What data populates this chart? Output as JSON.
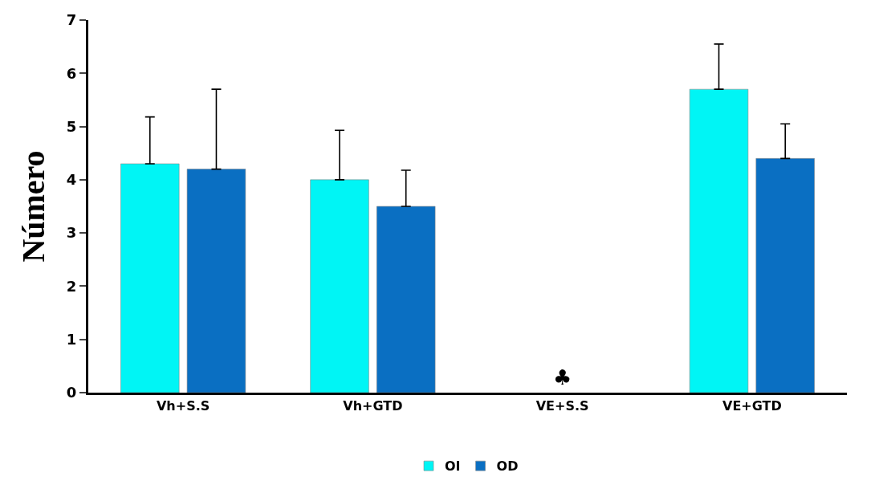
{
  "chart_data": {
    "type": "bar",
    "ylabel": "Número",
    "categories": [
      "Vh+S.S",
      "Vh+GTD",
      "VE+S.S",
      "VE+GTD"
    ],
    "series": [
      {
        "name": "OI",
        "color": "#00f5f5",
        "values": [
          4.3,
          4.0,
          null,
          5.7
        ],
        "errors": [
          [
            4.3,
            5.18
          ],
          [
            4.0,
            4.93
          ],
          null,
          [
            5.7,
            6.55
          ]
        ]
      },
      {
        "name": "OD",
        "color": "#0a6fc2",
        "values": [
          4.2,
          3.5,
          null,
          4.4
        ],
        "errors": [
          [
            4.2,
            5.7
          ],
          [
            3.5,
            4.18
          ],
          null,
          [
            4.4,
            5.05
          ]
        ]
      }
    ],
    "ylim": [
      0,
      7
    ],
    "yticks": [
      0,
      1,
      2,
      3,
      4,
      5,
      6,
      7
    ],
    "legend": "bottom",
    "annotations": [
      "♣"
    ]
  }
}
